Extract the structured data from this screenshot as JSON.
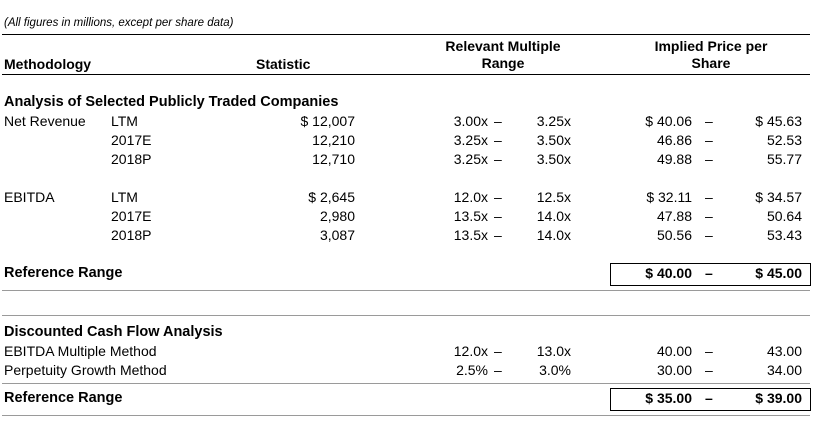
{
  "note": "(All figures in millions, except per share data)",
  "header": {
    "methodology": "Methodology",
    "statistic": "Statistic",
    "multiple_line1": "Relevant Multiple",
    "multiple_line2": "Range",
    "price_line1": "Implied Price per",
    "price_line2": "Share"
  },
  "section1": {
    "title": "Analysis of Selected Publicly Traded Companies",
    "groups": [
      {
        "label": "Net Revenue",
        "rows": [
          {
            "period": "LTM",
            "statistic": "$ 12,007",
            "mult_low": "3.00x",
            "mult_high": "3.25x",
            "price_low": "$ 40.06",
            "price_high": "$ 45.63"
          },
          {
            "period": "2017E",
            "statistic": "12,210",
            "mult_low": "3.25x",
            "mult_high": "3.50x",
            "price_low": "46.86",
            "price_high": "52.53"
          },
          {
            "period": "2018P",
            "statistic": "12,710",
            "mult_low": "3.25x",
            "mult_high": "3.50x",
            "price_low": "49.88",
            "price_high": "55.77"
          }
        ]
      },
      {
        "label": "EBITDA",
        "rows": [
          {
            "period": "LTM",
            "statistic": "$ 2,645",
            "mult_low": "12.0x",
            "mult_high": "12.5x",
            "price_low": "$ 32.11",
            "price_high": "$ 34.57"
          },
          {
            "period": "2017E",
            "statistic": "2,980",
            "mult_low": "13.5x",
            "mult_high": "14.0x",
            "price_low": "47.88",
            "price_high": "50.64"
          },
          {
            "period": "2018P",
            "statistic": "3,087",
            "mult_low": "13.5x",
            "mult_high": "14.0x",
            "price_low": "50.56",
            "price_high": "53.43"
          }
        ]
      }
    ],
    "reference": {
      "label": "Reference Range",
      "low": "$ 40.00",
      "high": "$ 45.00"
    }
  },
  "section2": {
    "title": "Discounted Cash Flow Analysis",
    "rows": [
      {
        "label": "EBITDA Multiple Method",
        "mult_low": "12.0x",
        "mult_high": "13.0x",
        "price_low": "40.00",
        "price_high": "43.00"
      },
      {
        "label": "Perpetuity Growth Method",
        "mult_low": "2.5%",
        "mult_high": "3.0%",
        "price_low": "30.00",
        "price_high": "34.00"
      }
    ],
    "reference": {
      "label": "Reference Range",
      "low": "$ 35.00",
      "high": "$ 39.00"
    }
  },
  "dash": "–"
}
